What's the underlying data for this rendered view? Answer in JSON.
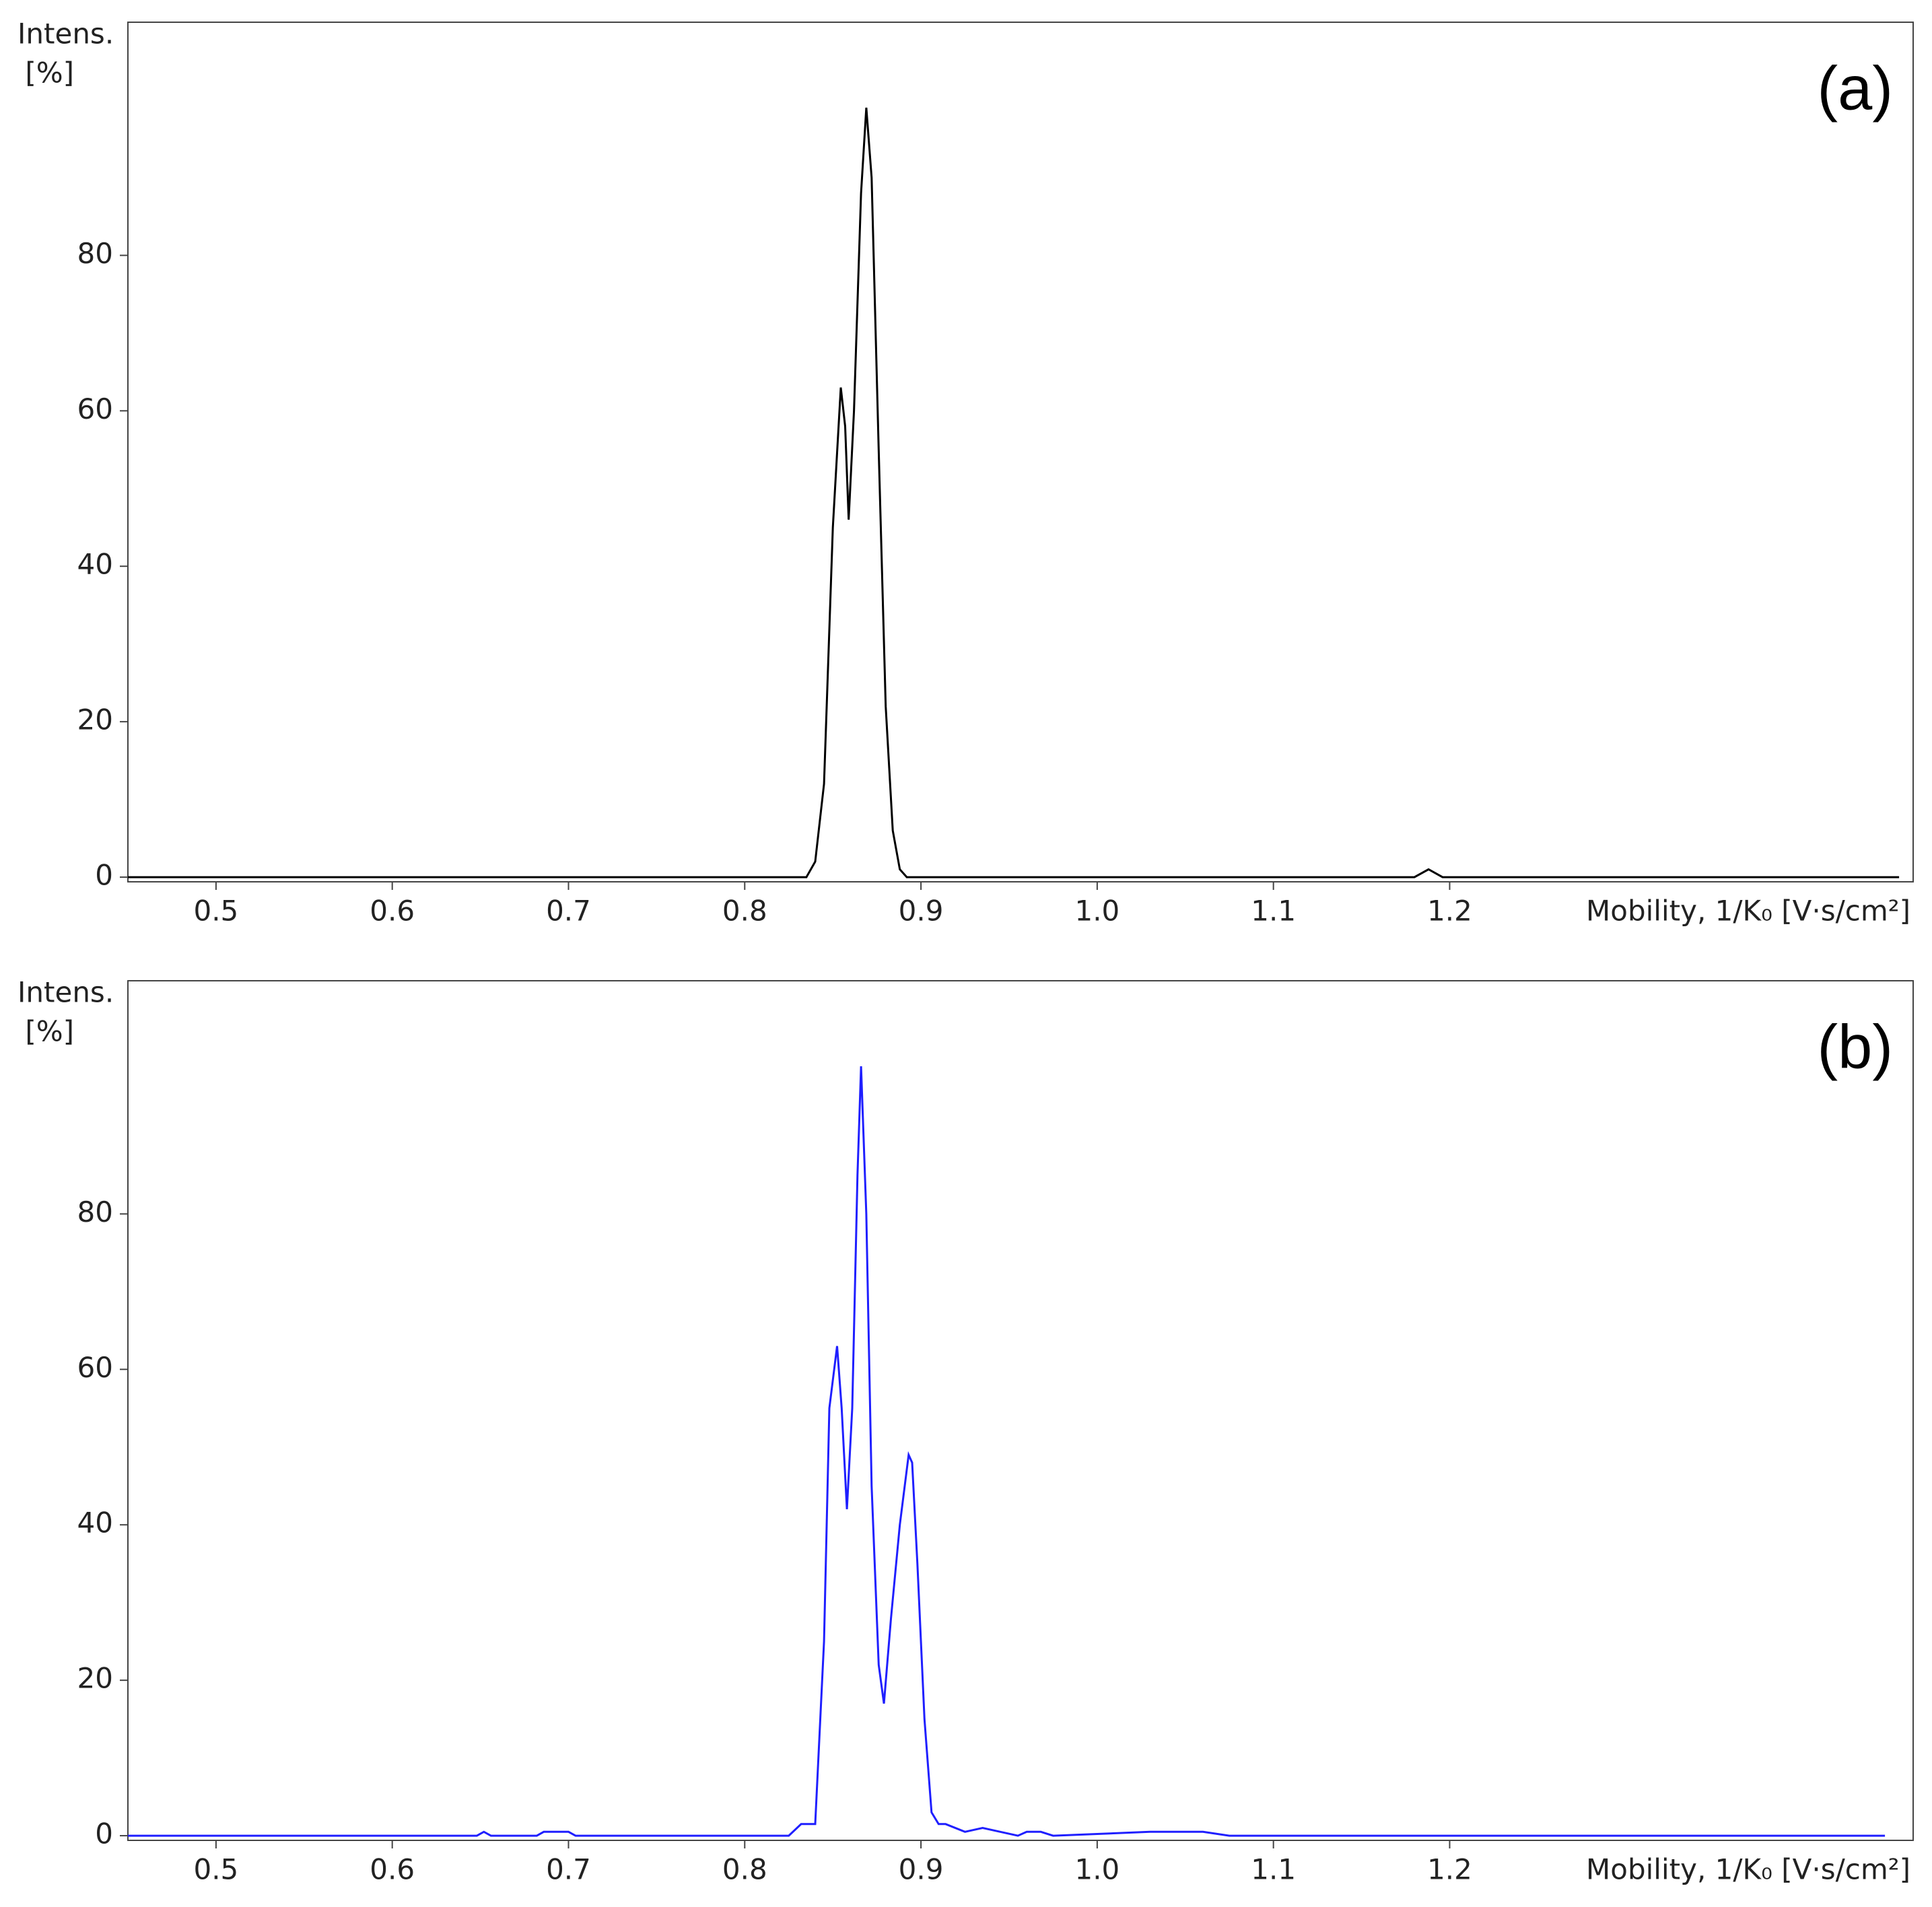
{
  "chart_data": [
    {
      "type": "line",
      "annotation": "(a)",
      "ylabel": [
        "Intens.",
        "[%]"
      ],
      "xlabel": "Mobility, 1/K₀ [V·s/cm²]",
      "color": "#000000",
      "x": [
        0.45,
        0.835,
        0.84,
        0.845,
        0.85,
        0.8545,
        0.857,
        0.859,
        0.862,
        0.866,
        0.869,
        0.872,
        0.876,
        0.88,
        0.884,
        0.888,
        0.892,
        1.18,
        1.188,
        1.196,
        1.455
      ],
      "values": [
        0,
        0,
        2,
        12,
        45,
        63,
        58,
        46,
        60,
        88,
        99,
        90,
        55,
        22,
        6,
        1,
        0,
        0,
        1,
        0,
        0
      ],
      "xlim": [
        0.45,
        1.463
      ],
      "ylim": [
        -0.6,
        110
      ],
      "xticks": [
        0.5,
        0.6,
        0.7,
        0.8,
        0.9,
        {
          "value": 1,
          "label": "1.0"
        },
        1.1,
        1.2
      ],
      "yticks": [
        0,
        20,
        40,
        60,
        80
      ]
    },
    {
      "type": "line",
      "annotation": "(b)",
      "ylabel": [
        "Intens.",
        "[%]"
      ],
      "xlabel": "Mobility, 1/K₀ [V·s/cm²]",
      "color": "#1f1fff",
      "x": [
        0.45,
        0.648,
        0.652,
        0.656,
        0.682,
        0.686,
        0.7,
        0.704,
        0.825,
        0.832,
        0.84,
        0.845,
        0.848,
        0.8524,
        0.855,
        0.858,
        0.861,
        0.864,
        0.866,
        0.869,
        0.872,
        0.876,
        0.879,
        0.883,
        0.888,
        0.893,
        0.895,
        0.898,
        0.902,
        0.906,
        0.91,
        0.914,
        0.925,
        0.935,
        0.945,
        0.955,
        0.96,
        0.968,
        0.975,
        1.03,
        1.06,
        1.075,
        1.447
      ],
      "values": [
        0,
        0,
        0.5,
        0,
        0,
        0.5,
        0.5,
        0,
        0,
        1.5,
        1.5,
        25,
        55,
        63,
        55,
        42,
        55,
        85,
        99,
        80,
        45,
        22,
        17,
        28,
        40,
        49,
        48,
        35,
        15,
        3,
        1.5,
        1.5,
        0.5,
        1,
        0.5,
        0,
        0.5,
        0.5,
        0,
        0.5,
        0.5,
        0,
        0
      ],
      "xlim": [
        0.45,
        1.463
      ],
      "ylim": [
        -0.6,
        110
      ],
      "xticks": [
        0.5,
        0.6,
        0.7,
        0.8,
        0.9,
        {
          "value": 1,
          "label": "1.0"
        },
        1.1,
        1.2
      ],
      "yticks": [
        0,
        20,
        40,
        60,
        80
      ]
    }
  ]
}
